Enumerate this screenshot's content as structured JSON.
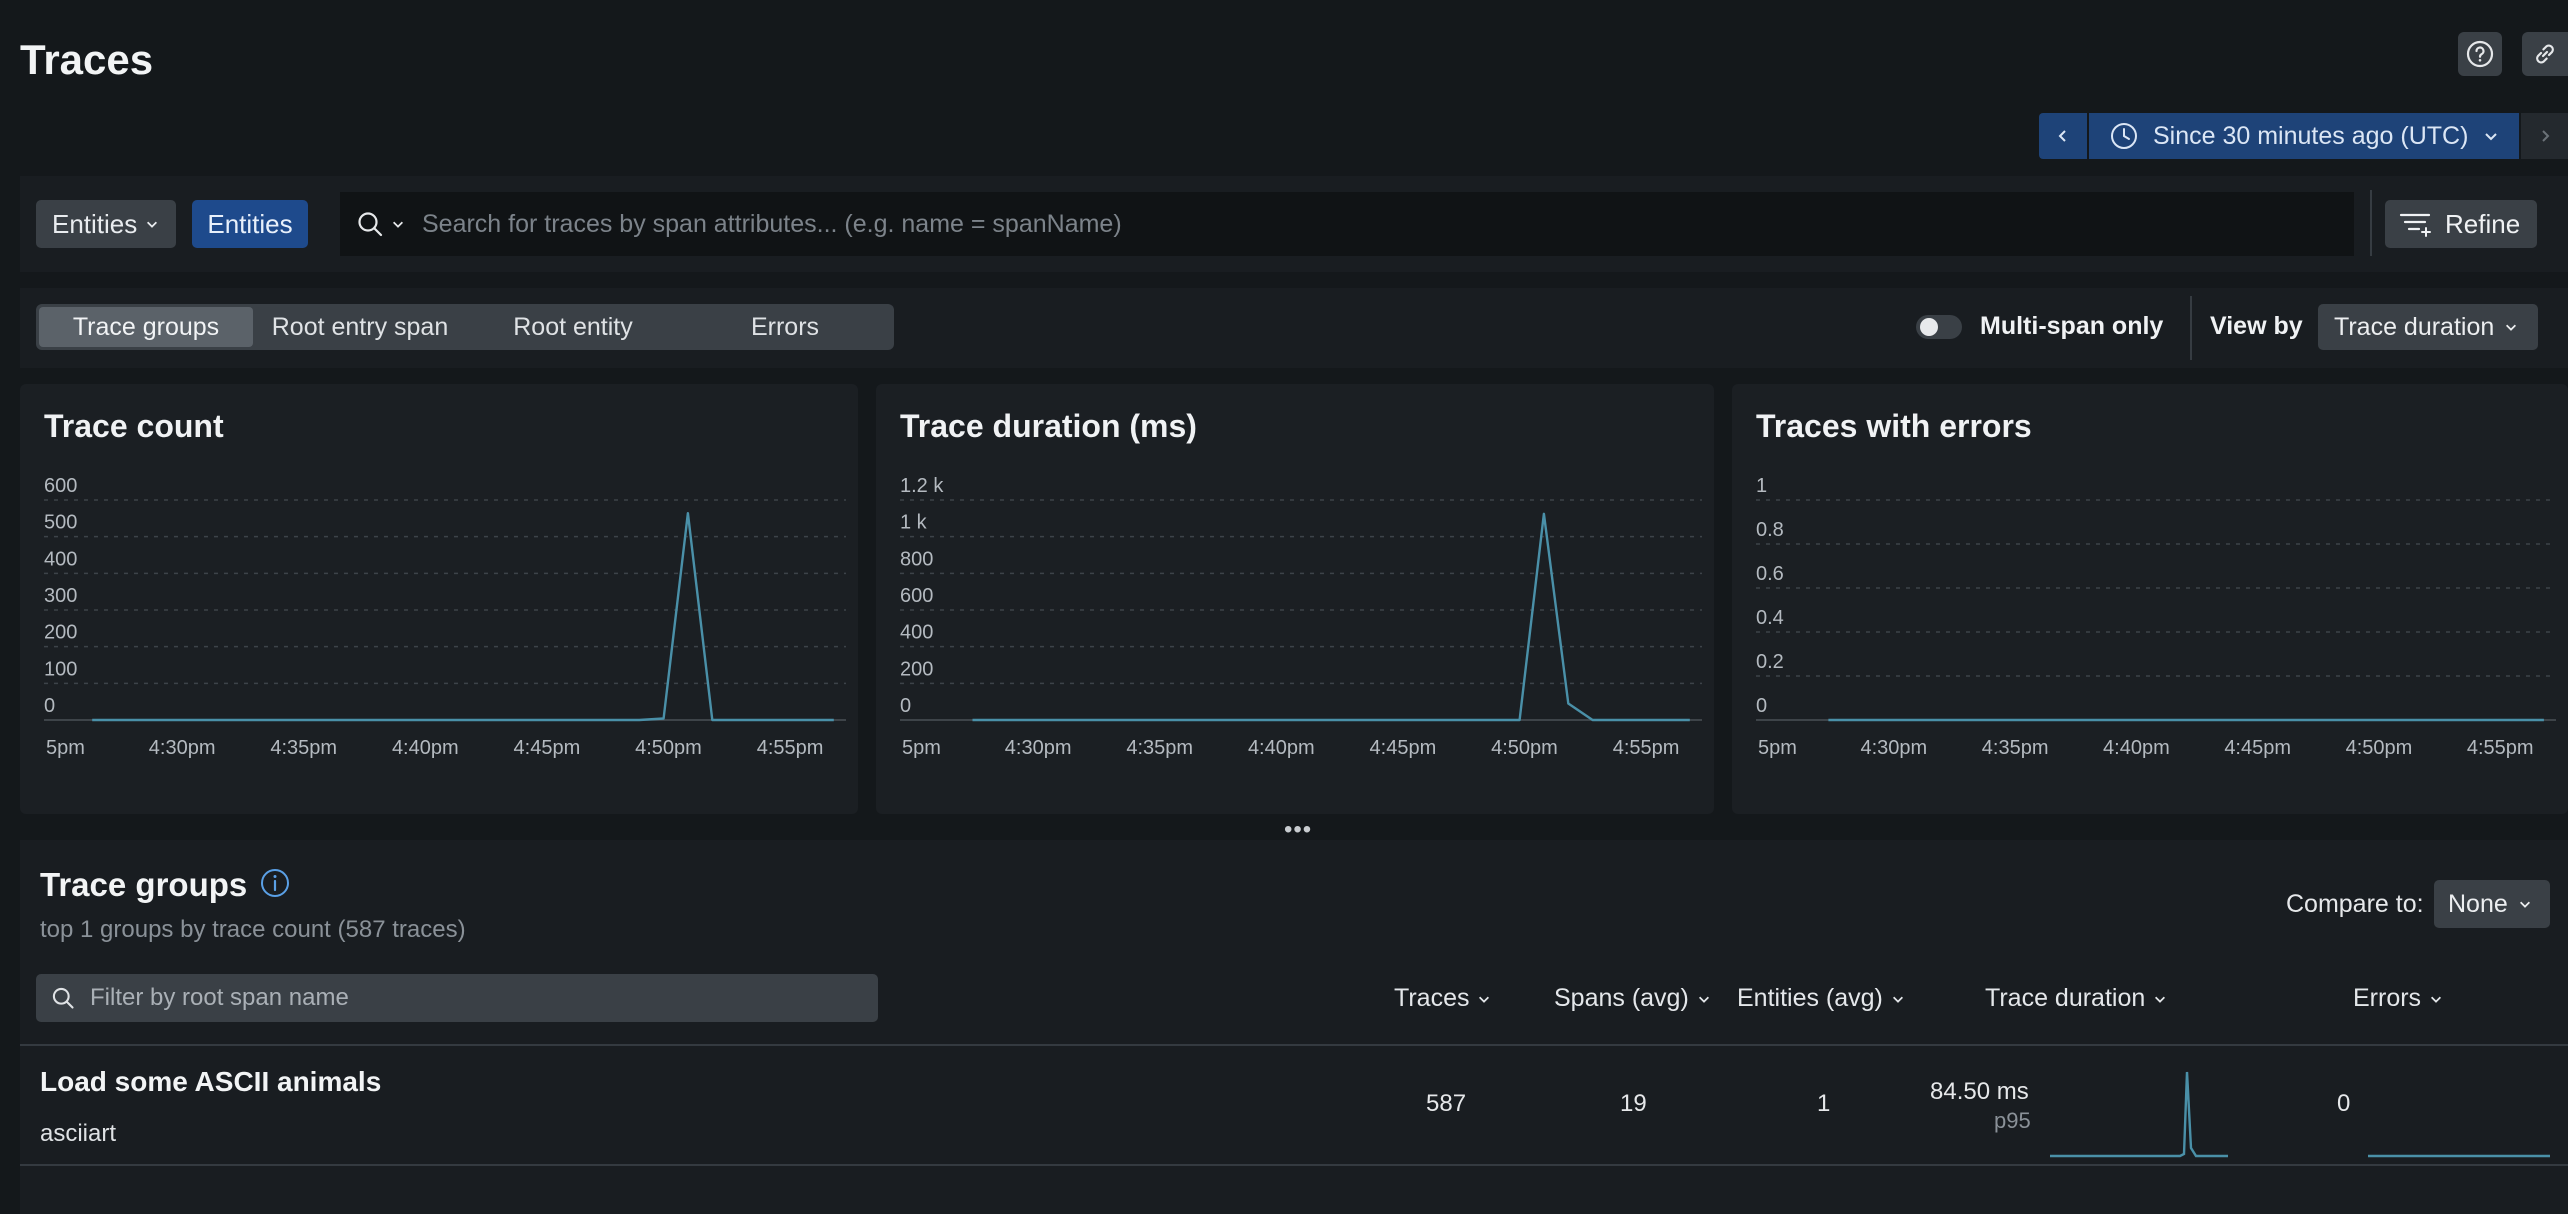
{
  "page": {
    "title": "Traces"
  },
  "toolbar": {
    "help_icon": "help-icon",
    "link_icon": "link-icon"
  },
  "time_picker": {
    "label": "Since 30 minutes ago (UTC)"
  },
  "search": {
    "entities_dropdown": "Entities",
    "entities_button": "Entities",
    "placeholder": "Search for traces by span attributes... (e.g. name = spanName)",
    "value": "",
    "refine_label": "Refine"
  },
  "tabs": {
    "items": [
      "Trace groups",
      "Root entry span",
      "Root entity",
      "Errors"
    ],
    "active": 0,
    "multi_span_label": "Multi-span only",
    "multi_span_on": false,
    "view_by_label": "View by",
    "view_by_value": "Trace duration"
  },
  "chart_data": [
    {
      "type": "line",
      "title": "Trace count",
      "x_ticks": [
        "5pm",
        "4:30pm",
        "4:35pm",
        "4:40pm",
        "4:45pm",
        "4:50pm",
        "4:55pm"
      ],
      "y_ticks": [
        "600",
        "500",
        "400",
        "300",
        "200",
        "100",
        "0"
      ],
      "ylim": [
        0,
        600
      ],
      "series": [
        {
          "color": "#4a90a8",
          "values": [
            [
              0.5,
              0
            ],
            [
              1,
              0
            ],
            [
              2,
              0
            ],
            [
              3,
              0
            ],
            [
              4,
              0
            ],
            [
              5,
              0
            ],
            [
              6,
              0
            ],
            [
              7,
              0
            ],
            [
              8,
              0
            ],
            [
              9,
              0
            ],
            [
              10,
              0
            ],
            [
              11,
              0
            ],
            [
              12,
              0
            ],
            [
              13,
              0
            ],
            [
              14,
              0
            ],
            [
              15,
              0
            ],
            [
              16,
              0
            ],
            [
              17,
              0
            ],
            [
              18,
              0
            ],
            [
              19,
              0
            ],
            [
              20,
              0
            ],
            [
              21,
              0
            ],
            [
              22,
              0
            ],
            [
              23,
              0
            ],
            [
              24,
              4
            ],
            [
              25,
              564
            ],
            [
              26,
              0
            ],
            [
              27,
              0
            ],
            [
              28,
              0
            ],
            [
              29,
              0
            ],
            [
              30,
              0
            ],
            [
              31,
              0
            ]
          ]
        }
      ]
    },
    {
      "type": "line",
      "title": "Trace duration (ms)",
      "x_ticks": [
        "5pm",
        "4:30pm",
        "4:35pm",
        "4:40pm",
        "4:45pm",
        "4:50pm",
        "4:55pm"
      ],
      "y_ticks": [
        "1.2 k",
        "1 k",
        "800",
        "600",
        "400",
        "200",
        "0"
      ],
      "ylim": [
        0,
        1200
      ],
      "series": [
        {
          "color": "#4a90a8",
          "values": [
            [
              1.5,
              0
            ],
            [
              2,
              0
            ],
            [
              3,
              0
            ],
            [
              4,
              0
            ],
            [
              5,
              0
            ],
            [
              6,
              0
            ],
            [
              7,
              0
            ],
            [
              8,
              0
            ],
            [
              9,
              0
            ],
            [
              10,
              0
            ],
            [
              11,
              0
            ],
            [
              12,
              0
            ],
            [
              13,
              0
            ],
            [
              14,
              0
            ],
            [
              15,
              0
            ],
            [
              16,
              0
            ],
            [
              17,
              0
            ],
            [
              18,
              0
            ],
            [
              19,
              0
            ],
            [
              20,
              0
            ],
            [
              21,
              0
            ],
            [
              22,
              0
            ],
            [
              23,
              0
            ],
            [
              24,
              0
            ],
            [
              25,
              1125
            ],
            [
              26,
              90
            ],
            [
              27,
              0
            ],
            [
              28,
              0
            ],
            [
              29,
              0
            ],
            [
              30,
              0
            ],
            [
              31,
              0
            ]
          ]
        }
      ]
    },
    {
      "type": "line",
      "title": "Traces with errors",
      "x_ticks": [
        "5pm",
        "4:30pm",
        "4:35pm",
        "4:40pm",
        "4:45pm",
        "4:50pm",
        "4:55pm"
      ],
      "y_ticks": [
        "1",
        "0.8",
        "0.6",
        "0.4",
        "0.2",
        "0"
      ],
      "ylim": [
        0,
        1
      ],
      "series": [
        {
          "color": "#4a90a8",
          "values": [
            [
              1.5,
              0
            ],
            [
              31,
              0
            ]
          ]
        }
      ]
    }
  ],
  "trace_groups": {
    "title": "Trace groups",
    "subtitle": "top 1 groups by trace count (587 traces)",
    "compare_label": "Compare to:",
    "compare_value": "None",
    "filter_placeholder": "Filter by root span name",
    "columns": [
      "Traces",
      "Spans (avg)",
      "Entities (avg)",
      "Trace duration",
      "Errors"
    ],
    "rows": [
      {
        "name": "Load some ASCII animals",
        "entity": "asciiart",
        "traces": "587",
        "spans": "19",
        "entities": "1",
        "duration": "84.50 ms",
        "duration_label": "p95",
        "errors": "0"
      }
    ]
  }
}
